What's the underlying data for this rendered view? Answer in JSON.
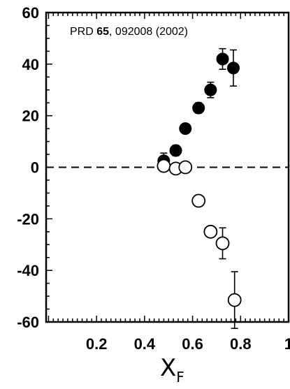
{
  "chart_data": {
    "type": "scatter",
    "reference": {
      "journal": "PRD ",
      "volume": "65",
      "rest": ", 092008 (2002)"
    },
    "xlabel": {
      "main": "X",
      "sub": "F"
    },
    "xlim": [
      0.0,
      1.0
    ],
    "ylim": [
      -60,
      60
    ],
    "x_ticks": [
      {
        "value": 0.2,
        "label": "0.2"
      },
      {
        "value": 0.4,
        "label": "0.4"
      },
      {
        "value": 0.6,
        "label": "0.6"
      },
      {
        "value": 0.8,
        "label": "0.8"
      },
      {
        "value": 1.0,
        "label": "1"
      }
    ],
    "y_ticks": [
      {
        "value": 60,
        "label": "60"
      },
      {
        "value": 40,
        "label": "40"
      },
      {
        "value": 20,
        "label": "20"
      },
      {
        "value": 0,
        "label": "0"
      },
      {
        "value": -20,
        "label": "-20"
      },
      {
        "value": -40,
        "label": "-40"
      },
      {
        "value": -60,
        "label": "-60"
      }
    ],
    "reference_line": {
      "y": 0,
      "style": "dashed"
    },
    "series": [
      {
        "marker": "filled-circle",
        "color": "#000000",
        "points": [
          {
            "x": 0.48,
            "y": 2.5,
            "err": 3
          },
          {
            "x": 0.53,
            "y": 6.5,
            "err": 2
          },
          {
            "x": 0.57,
            "y": 15,
            "err": 1.5
          },
          {
            "x": 0.625,
            "y": 23,
            "err": 2
          },
          {
            "x": 0.675,
            "y": 30,
            "err": 3
          },
          {
            "x": 0.725,
            "y": 42,
            "err": 4
          },
          {
            "x": 0.77,
            "y": 38.5,
            "err": 7
          }
        ]
      },
      {
        "marker": "open-circle",
        "color": "#000000",
        "points": [
          {
            "x": 0.48,
            "y": 0.5,
            "err": 0
          },
          {
            "x": 0.53,
            "y": -0.5,
            "err": 0
          },
          {
            "x": 0.57,
            "y": 0,
            "err": 0
          },
          {
            "x": 0.625,
            "y": -13,
            "err": 0
          },
          {
            "x": 0.675,
            "y": -25,
            "err": 2
          },
          {
            "x": 0.725,
            "y": -29.5,
            "err": 6
          },
          {
            "x": 0.775,
            "y": -51.5,
            "err": 11
          }
        ]
      }
    ]
  }
}
